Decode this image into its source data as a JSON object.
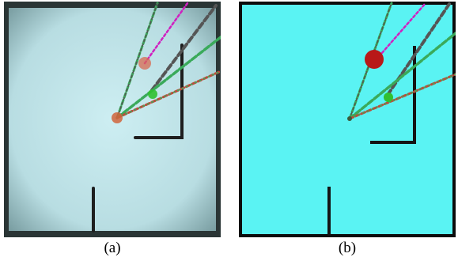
{
  "figure": {
    "panels": [
      {
        "caption": "(a)",
        "kind": "camera-photo",
        "background_color": "#bfe2e6",
        "frame_color": "#1f2a2a"
      },
      {
        "caption": "(b)",
        "kind": "segmented-image",
        "background_color": "#5af3f3",
        "frame_color": "#0c0c0c"
      }
    ],
    "colors": {
      "wall": "#1c1c1c",
      "robot_red": "#d0643c",
      "robot_red_segmented": "#b81818",
      "target_green": "#30c030",
      "ray_green": "#3aaa5a",
      "ray_magenta": "#d020c0",
      "ray_gray": "#555555",
      "ray_red": "#c04a3a"
    }
  }
}
